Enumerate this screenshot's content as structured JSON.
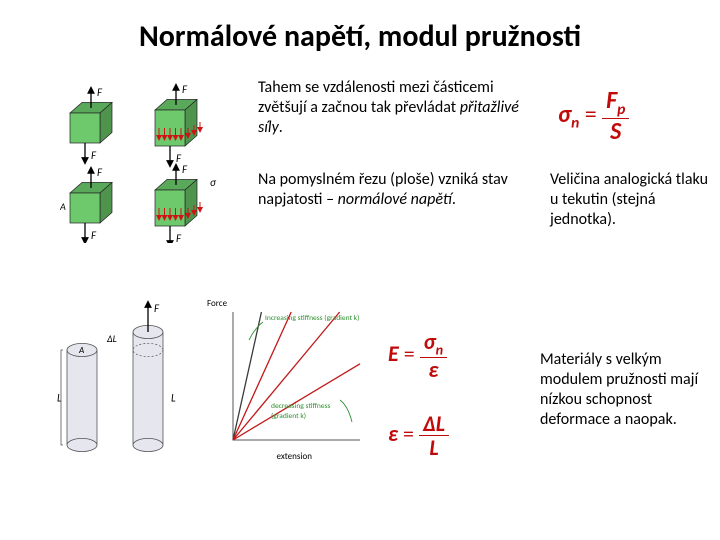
{
  "title": "Normálové napětí, modul pružnosti",
  "paragraphs": {
    "p1a": "Tahem se vzdálenosti mezi částicemi zvětšují a začnou tak převládat ",
    "p1b": "přitažlivé síly",
    "p1c": ".",
    "p2a": "Na pomyslném řezu (ploše) vzniká stav napjatosti – ",
    "p2b": "normálové napětí",
    "p2c": ".",
    "p3": "Veličina analogická tlaku u tekutin (stejná jednotka).",
    "p4": "Materiály s velkým modulem pružnosti mají nízkou schopnost deformace a naopak."
  },
  "formulas": {
    "sigma_lhs": "σ",
    "sigma_sub": "n",
    "eq": " = ",
    "Fp": "F",
    "Fp_sub": "p",
    "S": "S",
    "E_lhs": "E",
    "eps": "ε",
    "eps_lhs": "ε",
    "DL": "ΔL",
    "L": "L"
  },
  "cubes": {
    "face_front": "#6ec96d",
    "face_top": "#5aa859",
    "face_side": "#4e944d",
    "arrow": "#000000",
    "red_arrow": "#d01414",
    "label_F": "F",
    "label_A": "A",
    "label_sigma": "σ"
  },
  "cyls": {
    "fill": "#e6e6ef",
    "stroke": "#555555",
    "arrow": "#000000",
    "label_F": "F",
    "label_L": "L",
    "label_DL": "ΔL",
    "label_A": "A"
  },
  "graph": {
    "bg": "#ffffff",
    "axis": "#555555",
    "lines": [
      "#3a3a3a",
      "#c01818",
      "#c01818",
      "#c01818"
    ],
    "annot_top": "Increasing stiffness (gradient k)",
    "annot_bot": "decreasing stiffness (gradient k)",
    "xlabel": "extension",
    "ylabel": "Force",
    "annot_color": "#2f8f2f",
    "xlim": [
      0,
      100
    ],
    "ylim": [
      0,
      100
    ],
    "width": 165,
    "height": 175
  }
}
